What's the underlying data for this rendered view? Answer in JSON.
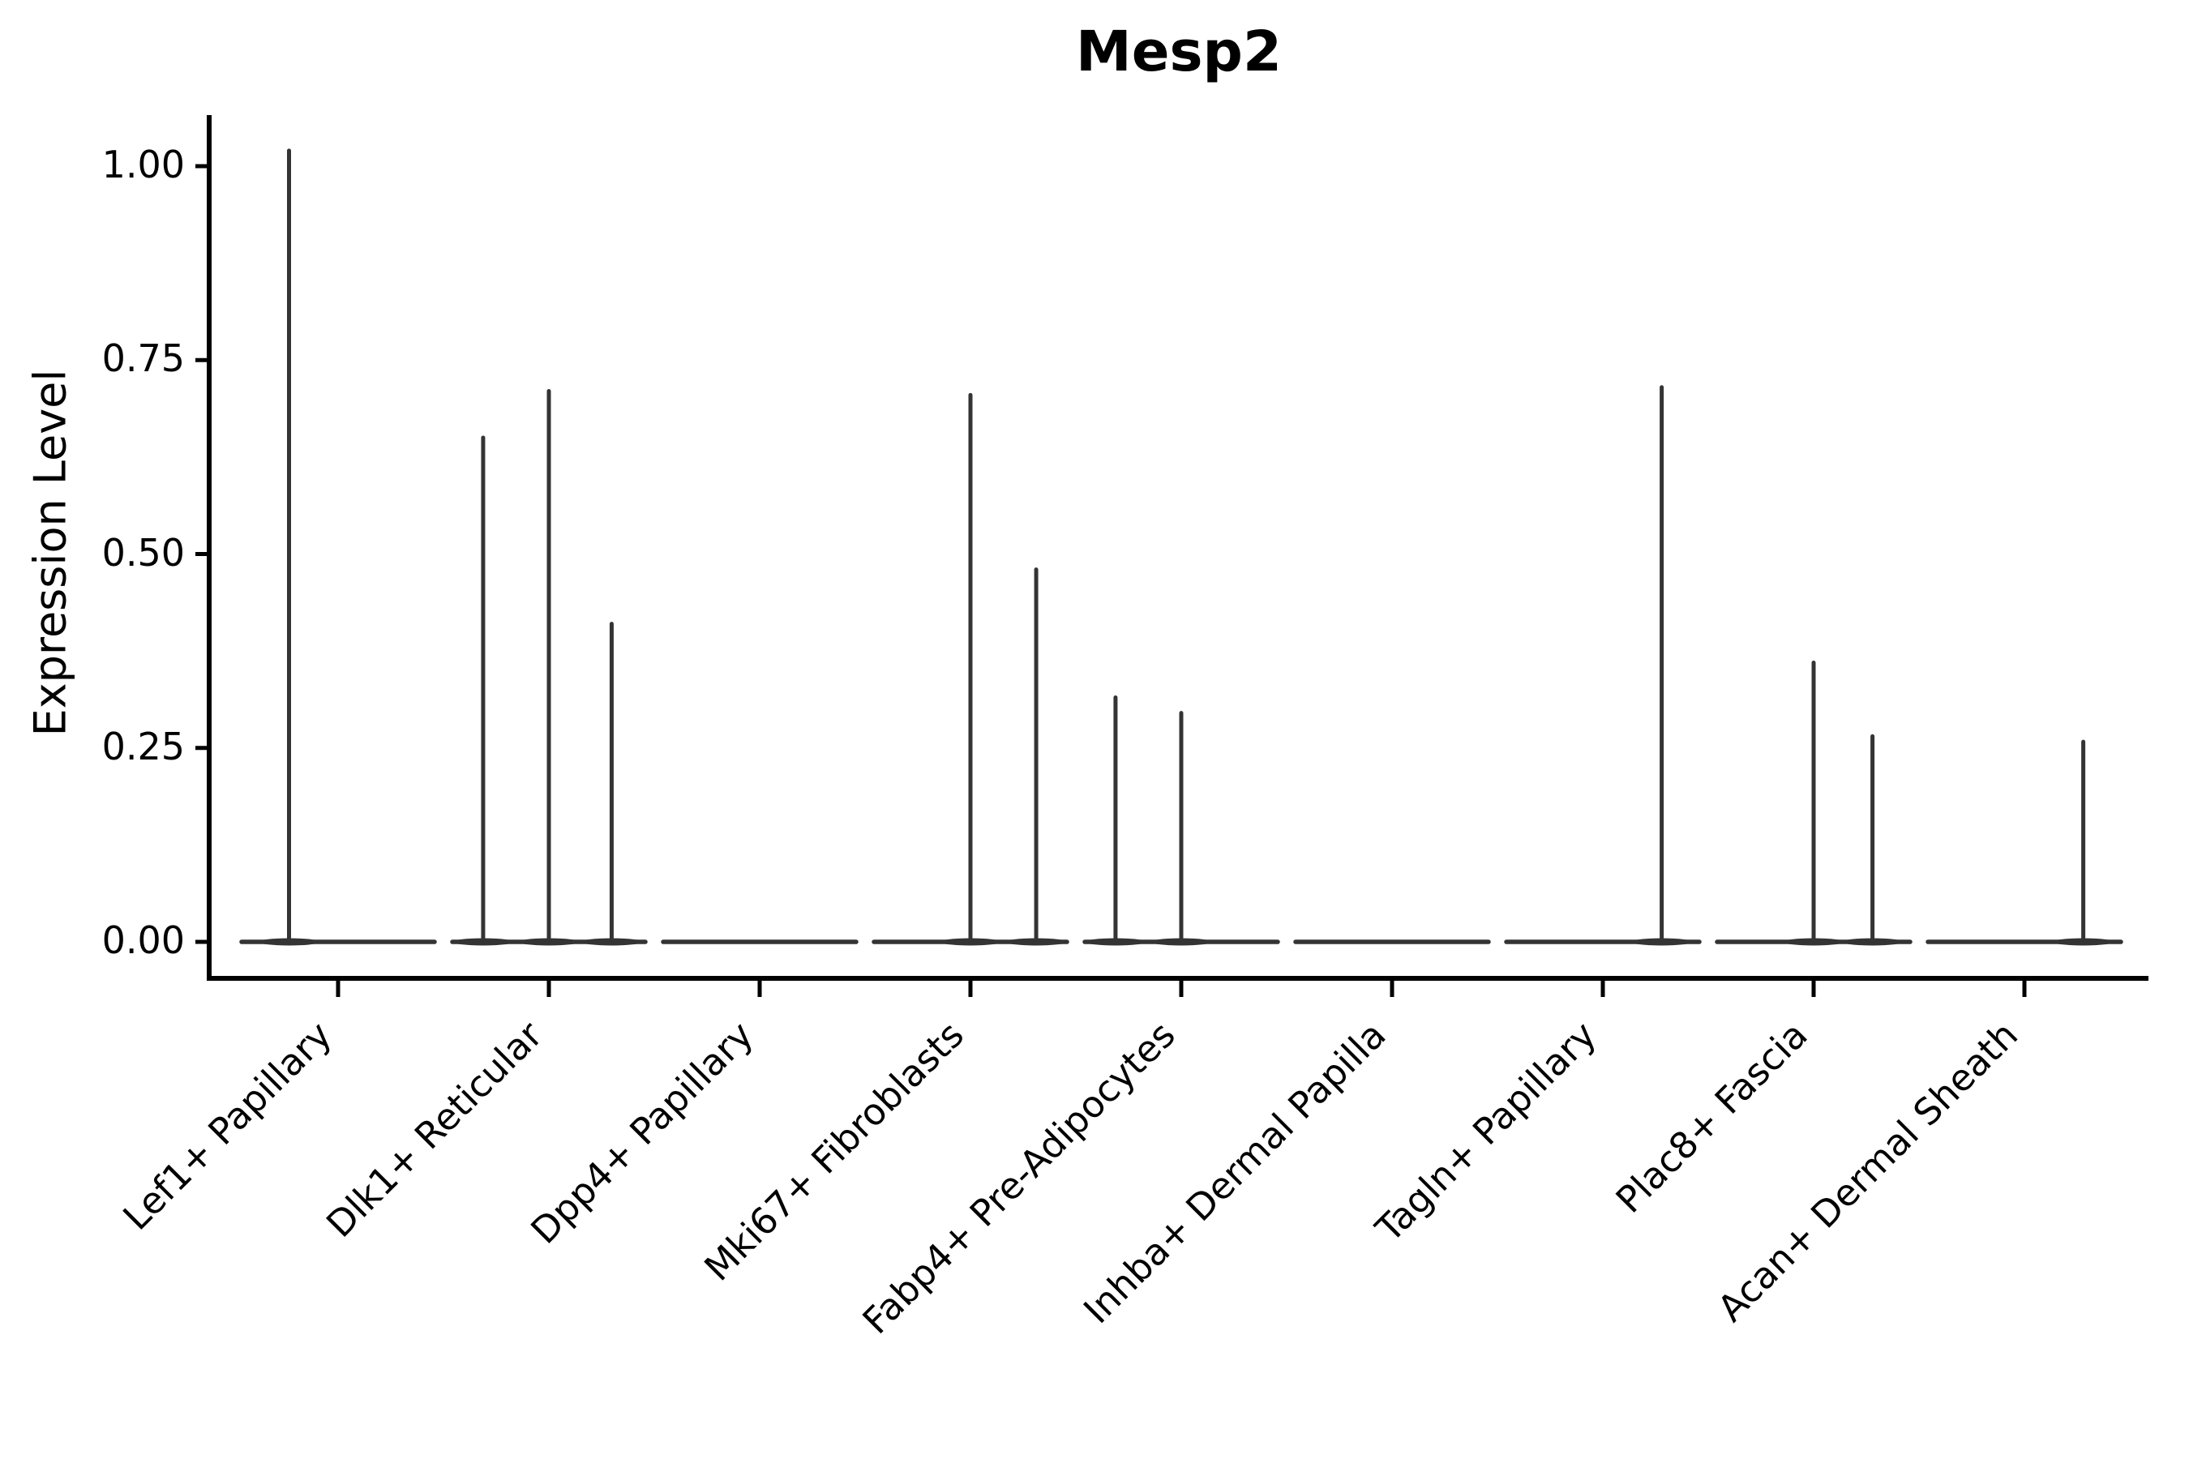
{
  "figure": {
    "background_color": "#ffffff"
  },
  "chart_data": {
    "type": "violin",
    "title": "Mesp2",
    "xlabel": "",
    "ylabel": "Expression Level",
    "ylim": [
      0,
      1.05
    ],
    "yticks": [
      0,
      0.25,
      0.5,
      0.75,
      1.0
    ],
    "ytick_labels": [
      "0.00",
      "0.25",
      "0.50",
      "0.75",
      "1.00"
    ],
    "x_labels_rotation_deg": 45,
    "grid": "off",
    "legend": "none",
    "categories": [
      "Lef1+ Papillary",
      "Dlk1+ Reticular",
      "Dpp4+ Papillary",
      "Mki67+ Fibroblasts",
      "Fabp4+ Pre-Adipocytes",
      "Inhba+ Dermal Papilla",
      "Tagln+ Papillary",
      "Plac8+ Fascia",
      "Acan+ Dermal Sheath"
    ],
    "baseline_value": 0.0,
    "spikes_by_category": [
      [
        {
          "pos": 0.25,
          "value": 1.02
        }
      ],
      [
        {
          "pos": 0.165,
          "value": 0.65
        },
        {
          "pos": 0.5,
          "value": 0.71
        },
        {
          "pos": 0.82,
          "value": 0.41
        }
      ],
      [],
      [
        {
          "pos": 0.5,
          "value": 0.705
        },
        {
          "pos": 0.835,
          "value": 0.48
        }
      ],
      [
        {
          "pos": 0.165,
          "value": 0.315
        },
        {
          "pos": 0.5,
          "value": 0.295
        }
      ],
      [],
      [
        {
          "pos": 0.8,
          "value": 0.715
        }
      ],
      [
        {
          "pos": 0.5,
          "value": 0.36
        },
        {
          "pos": 0.8,
          "value": 0.265
        }
      ],
      [
        {
          "pos": 0.8,
          "value": 0.258
        }
      ]
    ],
    "colors": {
      "violin": "#343434",
      "axis": "#000000",
      "text": "#000000",
      "background": "#ffffff"
    }
  }
}
